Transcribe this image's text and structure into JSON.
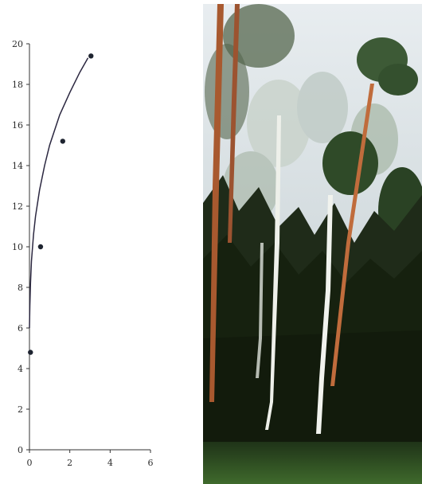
{
  "chart_data": {
    "type": "scatter",
    "title": "",
    "xlabel": "",
    "ylabel": "",
    "xlim": [
      0,
      6
    ],
    "ylim": [
      0,
      20
    ],
    "xticks": [
      0,
      2,
      4,
      6
    ],
    "yticks": [
      0,
      2,
      4,
      6,
      8,
      10,
      12,
      14,
      16,
      18,
      20
    ],
    "grid": false,
    "points": [
      {
        "x": 0.05,
        "y": 4.8
      },
      {
        "x": 0.55,
        "y": 10.0
      },
      {
        "x": 1.65,
        "y": 15.2
      },
      {
        "x": 3.05,
        "y": 19.4
      }
    ],
    "fit_curve": {
      "type": "logarithmic",
      "x": [
        0.0,
        0.02,
        0.05,
        0.1,
        0.2,
        0.3,
        0.5,
        0.75,
        1.0,
        1.5,
        2.0,
        2.5,
        2.9
      ],
      "y": [
        6.0,
        7.1,
        8.2,
        9.3,
        10.6,
        11.5,
        12.8,
        14.0,
        15.0,
        16.5,
        17.6,
        18.6,
        19.3
      ]
    }
  },
  "photo": {
    "subject": "forest-with-birch-and-pine-trees",
    "colors": {
      "sky": "#dfe6ea",
      "foliage_dark": "#1d2a17",
      "foliage_mid": "#3a4d2a",
      "ground": "#2f4a22",
      "birch_trunk": "#e9ece6",
      "pine_trunk": "#b5663b"
    }
  }
}
